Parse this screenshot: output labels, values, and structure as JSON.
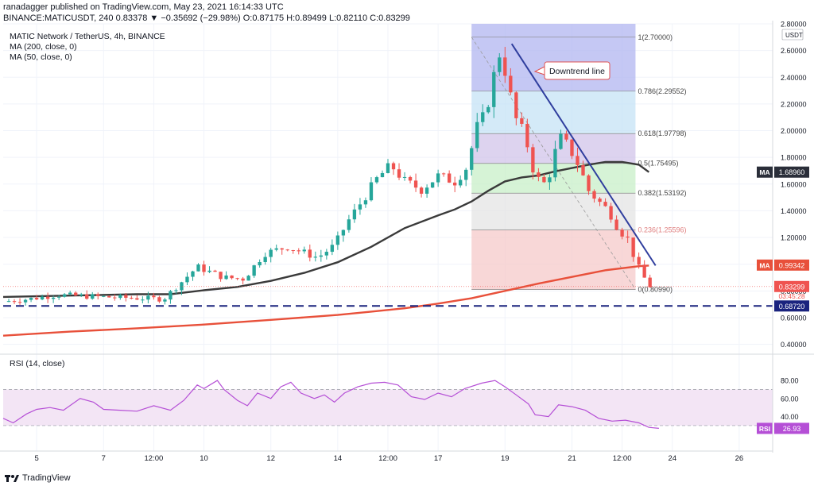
{
  "header": {
    "published": "ranadagger published on TradingView.com, May 23, 2021 16:14:33 UTC",
    "ohlc_line": "BINANCE:MATICUSDT, 240 0.83378 ▼ −0.35692 (−29.98%) O:0.87175 H:0.89499 L:0.82110 C:0.83299"
  },
  "legend": {
    "title": "MATIC Network / TetherUS, 4h, BINANCE",
    "ma200": "MA (200, close, 0)",
    "ma50": "MA (50, close, 0)",
    "rsi": "RSI (14, close)"
  },
  "footer": {
    "brand": "TradingView"
  },
  "colors": {
    "up": "#26a69a",
    "down": "#ef5350",
    "ma50": "#3a3a3a",
    "ma200": "#e8503a",
    "rsi": "#b54fd6",
    "rsi_bg": "#f3e5f5",
    "trendline": "#2f3e9e",
    "support": "#1a237e"
  },
  "chart_data": [
    {
      "type": "candlestick",
      "title": "MATIC Network / TetherUS, 4h, BINANCE",
      "y_unit": "USDT",
      "ylim": [
        0.35,
        2.8
      ],
      "xlim": [
        4.0,
        27.0
      ],
      "y_ticks": [
        "0.40000",
        "0.60000",
        "0.80000",
        "1.00000",
        "1.20000",
        "1.40000",
        "1.60000",
        "1.80000",
        "2.00000",
        "2.20000",
        "2.40000",
        "2.60000",
        "2.80000"
      ],
      "x_ticks": [
        {
          "label": "5",
          "x": 5.0
        },
        {
          "label": "7",
          "x": 7.0
        },
        {
          "label": "12:00",
          "x": 8.5
        },
        {
          "label": "10",
          "x": 10.0
        },
        {
          "label": "12",
          "x": 12.0
        },
        {
          "label": "14",
          "x": 14.0
        },
        {
          "label": "12:00",
          "x": 15.5
        },
        {
          "label": "17",
          "x": 17.0
        },
        {
          "label": "19",
          "x": 19.0
        },
        {
          "label": "21",
          "x": 21.0
        },
        {
          "label": "12:00",
          "x": 22.5
        },
        {
          "label": "24",
          "x": 24.0
        },
        {
          "label": "26",
          "x": 26.0
        }
      ],
      "price_path": [
        [
          4.0,
          0.72
        ],
        [
          4.8,
          0.74
        ],
        [
          5.6,
          0.77
        ],
        [
          6.5,
          0.76
        ],
        [
          7.5,
          0.75
        ],
        [
          8.8,
          0.74
        ],
        [
          9.3,
          0.86
        ],
        [
          9.8,
          0.98
        ],
        [
          10.6,
          0.9
        ],
        [
          11.2,
          0.89
        ],
        [
          11.8,
          1.08
        ],
        [
          12.5,
          1.13
        ],
        [
          13.4,
          1.05
        ],
        [
          13.9,
          1.14
        ],
        [
          14.3,
          1.32
        ],
        [
          14.8,
          1.5
        ],
        [
          15.2,
          1.65
        ],
        [
          15.6,
          1.74
        ],
        [
          16.0,
          1.62
        ],
        [
          16.5,
          1.56
        ],
        [
          17.0,
          1.66
        ],
        [
          17.5,
          1.62
        ],
        [
          17.9,
          1.74
        ],
        [
          18.1,
          2.0
        ],
        [
          18.4,
          2.12
        ],
        [
          18.6,
          2.32
        ],
        [
          18.8,
          2.6
        ],
        [
          19.0,
          2.45
        ],
        [
          19.3,
          2.1
        ],
        [
          19.6,
          1.96
        ],
        [
          19.9,
          1.65
        ],
        [
          20.2,
          1.6
        ],
        [
          20.4,
          1.72
        ],
        [
          20.6,
          1.96
        ],
        [
          20.9,
          1.88
        ],
        [
          21.2,
          1.74
        ],
        [
          21.5,
          1.55
        ],
        [
          21.8,
          1.47
        ],
        [
          22.1,
          1.4
        ],
        [
          22.4,
          1.26
        ],
        [
          22.7,
          1.18
        ],
        [
          22.9,
          1.02
        ],
        [
          23.1,
          0.92
        ],
        [
          23.35,
          0.83
        ]
      ],
      "series": [
        {
          "name": "MA (50, close, 0)",
          "last_value": "1.68960",
          "label": "MA",
          "points": [
            [
              4.0,
              0.755
            ],
            [
              6.0,
              0.765
            ],
            [
              8.0,
              0.775
            ],
            [
              9.0,
              0.775
            ],
            [
              10.0,
              0.805
            ],
            [
              11.0,
              0.83
            ],
            [
              12.0,
              0.875
            ],
            [
              13.0,
              0.935
            ],
            [
              14.0,
              1.015
            ],
            [
              15.0,
              1.13
            ],
            [
              16.0,
              1.27
            ],
            [
              17.0,
              1.365
            ],
            [
              17.5,
              1.41
            ],
            [
              18.0,
              1.47
            ],
            [
              18.5,
              1.55
            ],
            [
              19.0,
              1.62
            ],
            [
              19.5,
              1.65
            ],
            [
              20.0,
              1.665
            ],
            [
              20.5,
              1.695
            ],
            [
              21.0,
              1.72
            ],
            [
              21.5,
              1.745
            ],
            [
              22.0,
              1.765
            ],
            [
              22.5,
              1.765
            ],
            [
              23.0,
              1.745
            ],
            [
              23.3,
              1.69
            ]
          ]
        },
        {
          "name": "MA (200, close, 0)",
          "last_value": "0.99342",
          "label": "MA",
          "points": [
            [
              4.0,
              0.465
            ],
            [
              6.0,
              0.495
            ],
            [
              8.0,
              0.52
            ],
            [
              10.0,
              0.548
            ],
            [
              12.0,
              0.583
            ],
            [
              14.0,
              0.62
            ],
            [
              15.0,
              0.645
            ],
            [
              16.0,
              0.67
            ],
            [
              17.0,
              0.705
            ],
            [
              18.0,
              0.745
            ],
            [
              19.0,
              0.8
            ],
            [
              20.0,
              0.855
            ],
            [
              21.0,
              0.905
            ],
            [
              22.0,
              0.955
            ],
            [
              23.0,
              0.985
            ],
            [
              23.3,
              0.99
            ]
          ]
        }
      ],
      "fibonacci": [
        {
          "ratio": "1",
          "price": "2.70000",
          "y": 2.7,
          "fill": "#b2b5f0"
        },
        {
          "ratio": "0.786",
          "price": "2.29552",
          "y": 2.29552,
          "fill": "#c5e3f6"
        },
        {
          "ratio": "0.618",
          "price": "1.97798",
          "y": 1.97798,
          "fill": "#d1c4e9"
        },
        {
          "ratio": "0.5",
          "price": "1.75495",
          "y": 1.75495,
          "fill": "#c8efc8"
        },
        {
          "ratio": "0.382",
          "price": "1.53192",
          "y": 1.53192,
          "fill": "#e4e4e4"
        },
        {
          "ratio": "0.236",
          "price": "1.25596",
          "y": 1.25596,
          "fill": "#f6c9c9"
        },
        {
          "ratio": "0",
          "price": "0.80990",
          "y": 0.8099,
          "fill": null
        }
      ],
      "fib_x": [
        18.0,
        22.9
      ],
      "trendline": {
        "label": "Downtrend line",
        "from": [
          19.2,
          2.65
        ],
        "to": [
          23.5,
          0.99
        ]
      },
      "support": {
        "price": "0.68720",
        "y": 0.6872
      },
      "last_price": {
        "price": "0.83299",
        "countdown": "03:45:28",
        "y": 0.833
      },
      "axis_unit_label": "USDT"
    },
    {
      "type": "line",
      "name": "RSI (14, close)",
      "ylim": [
        15,
        88
      ],
      "y_ticks": [
        "40.00",
        "60.00",
        "80.00"
      ],
      "band": [
        30,
        70
      ],
      "last_value": "26.93",
      "label": "RSI",
      "points": [
        [
          4.0,
          38
        ],
        [
          4.3,
          33
        ],
        [
          4.7,
          43
        ],
        [
          5.0,
          48
        ],
        [
          5.4,
          50
        ],
        [
          5.8,
          47
        ],
        [
          6.3,
          60
        ],
        [
          6.7,
          56
        ],
        [
          7.0,
          48
        ],
        [
          7.5,
          47
        ],
        [
          8.0,
          46
        ],
        [
          8.5,
          52
        ],
        [
          9.0,
          47
        ],
        [
          9.4,
          58
        ],
        [
          9.8,
          75
        ],
        [
          10.0,
          71
        ],
        [
          10.4,
          80
        ],
        [
          10.6,
          70
        ],
        [
          11.0,
          58
        ],
        [
          11.3,
          52
        ],
        [
          11.6,
          66
        ],
        [
          12.0,
          60
        ],
        [
          12.3,
          73
        ],
        [
          12.6,
          78
        ],
        [
          12.9,
          66
        ],
        [
          13.3,
          60
        ],
        [
          13.6,
          64
        ],
        [
          13.9,
          56
        ],
        [
          14.2,
          66
        ],
        [
          14.6,
          73
        ],
        [
          15.0,
          77
        ],
        [
          15.4,
          78
        ],
        [
          15.8,
          75
        ],
        [
          16.2,
          62
        ],
        [
          16.6,
          59
        ],
        [
          17.0,
          66
        ],
        [
          17.4,
          62
        ],
        [
          17.8,
          71
        ],
        [
          18.3,
          77
        ],
        [
          18.7,
          80
        ],
        [
          19.0,
          73
        ],
        [
          19.3,
          65
        ],
        [
          19.7,
          54
        ],
        [
          19.9,
          42
        ],
        [
          20.3,
          40
        ],
        [
          20.6,
          53
        ],
        [
          21.0,
          51
        ],
        [
          21.4,
          47
        ],
        [
          21.8,
          38
        ],
        [
          22.2,
          35
        ],
        [
          22.6,
          36
        ],
        [
          23.0,
          33
        ],
        [
          23.3,
          28
        ],
        [
          23.6,
          27
        ]
      ]
    }
  ]
}
